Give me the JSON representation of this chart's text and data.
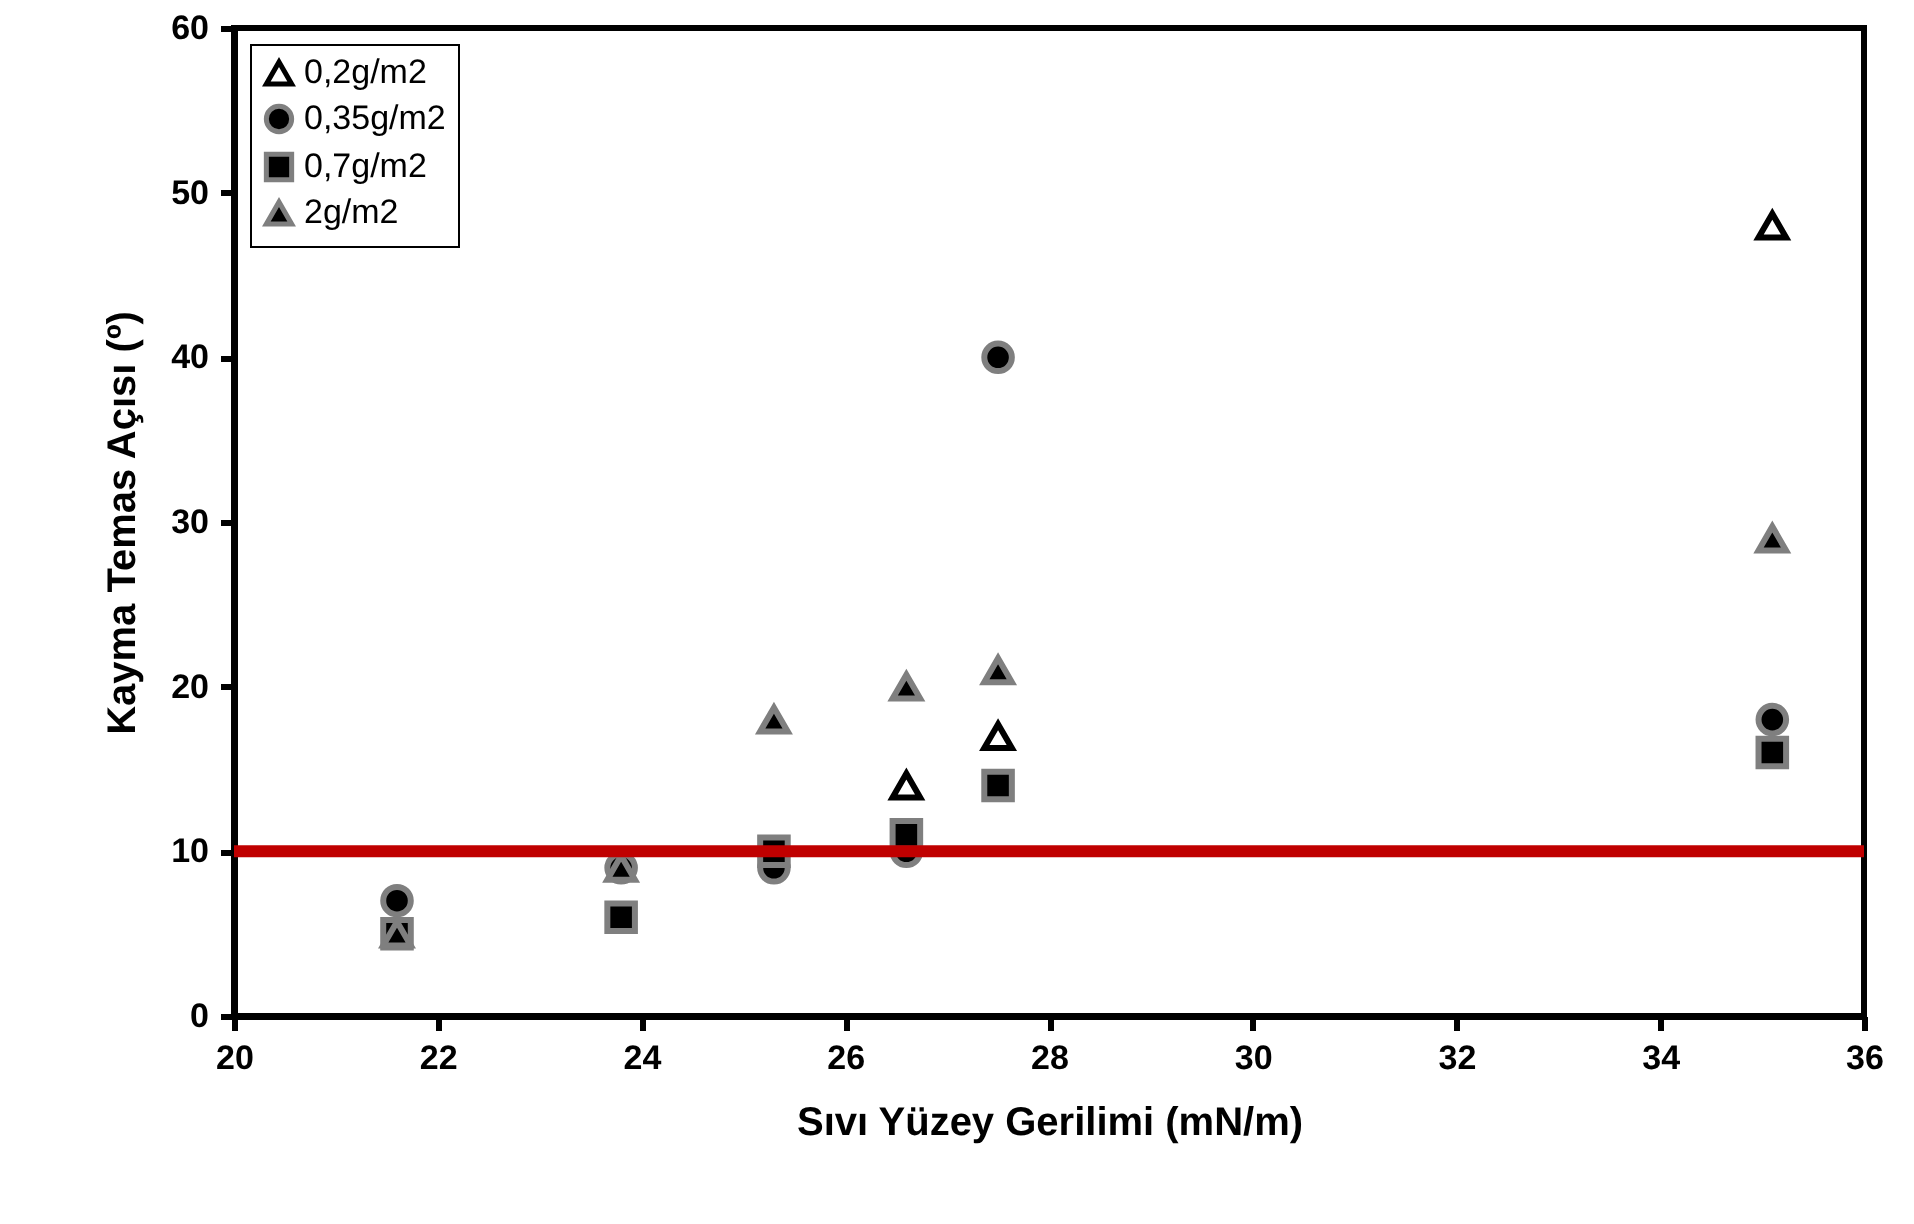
{
  "chart_data": {
    "type": "scatter",
    "xlabel": "Sıvı Yüzey Gerilimi (mN/m)",
    "ylabel": "Kayma  Temas Açısı (º)",
    "xlim": [
      20,
      36
    ],
    "xticks": [
      20,
      22,
      24,
      26,
      28,
      30,
      32,
      34,
      36
    ],
    "ylim": [
      0,
      60
    ],
    "yticks": [
      0,
      10,
      20,
      30,
      40,
      50,
      60
    ],
    "grid": false,
    "legend": "top left",
    "series": [
      {
        "name": "0,2g/m2",
        "color": "#ffffff",
        "marker": "triangle",
        "x": [
          26.6,
          27.5,
          35.1
        ],
        "values": [
          14,
          17,
          48
        ]
      },
      {
        "name": "0,35g/m2",
        "color": "#000000",
        "marker": "circle",
        "x": [
          21.6,
          23.8,
          25.3,
          26.6,
          27.5,
          35.1
        ],
        "values": [
          7,
          9,
          9,
          10,
          40,
          18
        ]
      },
      {
        "name": "0,7g/m2",
        "color": "#000000",
        "marker": "square",
        "x": [
          21.6,
          23.8,
          25.3,
          26.6,
          27.5,
          35.1
        ],
        "values": [
          5,
          6,
          10,
          11,
          14,
          16
        ]
      },
      {
        "name": "2g/m2",
        "color": "#000000",
        "marker": "triangle",
        "x": [
          21.6,
          23.8,
          25.3,
          26.6,
          27.5,
          35.1
        ],
        "values": [
          5,
          9,
          18,
          20,
          21,
          29
        ]
      }
    ],
    "ref_lines": [
      {
        "axis": "y",
        "value": 10,
        "color": "#c00000"
      }
    ]
  }
}
